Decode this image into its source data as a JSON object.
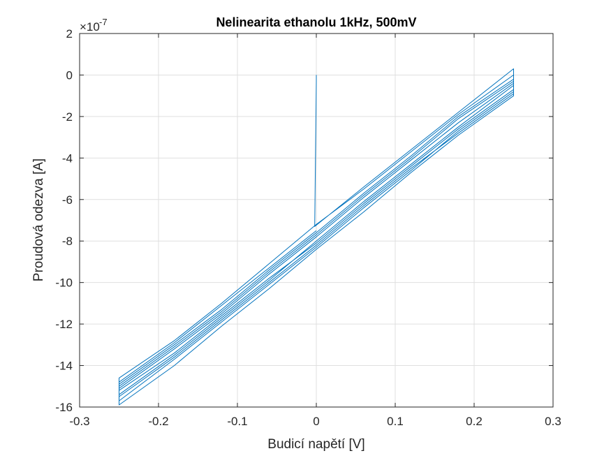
{
  "chart_data": {
    "type": "line",
    "title": "Nelinearita ethanolu 1kHz, 500mV",
    "xlabel": "Budicí napětí [V]",
    "ylabel": "Proudová odezva [A]",
    "y_exponent_prefix": "×10",
    "y_exponent_power": "-7",
    "xlim": [
      -0.3,
      0.3
    ],
    "ylim": [
      -16,
      2
    ],
    "x_ticks": [
      -0.3,
      -0.2,
      -0.1,
      0,
      0.1,
      0.2,
      0.3
    ],
    "x_tick_labels": [
      "-0.3",
      "-0.2",
      "-0.1",
      "0",
      "0.1",
      "0.2",
      "0.3"
    ],
    "y_ticks": [
      -16,
      -14,
      -12,
      -10,
      -8,
      -6,
      -4,
      -2,
      0,
      2
    ],
    "y_tick_labels": [
      "-16",
      "-14",
      "-12",
      "-10",
      "-8",
      "-6",
      "-4",
      "-2",
      "0",
      "2"
    ],
    "grid": true,
    "line_color": "#0072BD",
    "series": [
      {
        "x": [
          0,
          0.0,
          -0.002,
          0.06,
          0.12,
          0.18,
          0.25,
          0.25,
          0.18,
          0.12,
          0.06,
          0.0,
          -0.06,
          -0.12,
          -0.18,
          -0.25,
          -0.25,
          -0.18,
          -0.12,
          -0.06,
          0.0,
          0.06,
          0.12,
          0.18,
          0.25,
          0.25,
          0.18,
          0.12,
          0.06,
          0.0,
          -0.06,
          -0.12,
          -0.18,
          -0.25,
          -0.25,
          -0.18,
          -0.12,
          -0.06,
          0.0,
          0.06,
          0.12,
          0.18,
          0.25,
          0.25,
          0.18,
          0.12,
          0.06,
          0.0,
          -0.06,
          -0.12,
          -0.18,
          -0.25,
          -0.25,
          -0.18,
          -0.12,
          -0.06,
          0.0,
          0.06,
          0.12,
          0.18,
          0.25,
          0.25,
          0.18,
          0.12,
          0.06,
          0.0,
          -0.06,
          -0.12,
          -0.18,
          -0.25,
          -0.25,
          -0.18,
          -0.12,
          -0.06,
          0.0,
          0.06,
          0.12,
          0.18,
          0.25,
          0.25,
          0.18,
          0.12,
          0.06,
          0.0,
          -0.06,
          -0.12,
          -0.18,
          -0.25,
          -0.25,
          -0.18,
          -0.12,
          -0.06,
          0.0
        ],
        "y": [
          0,
          -0.3,
          -7.3,
          -5.4,
          -3.6,
          -1.8,
          0.3,
          -0.5,
          -2.5,
          -4.3,
          -6.1,
          -8.0,
          -9.9,
          -11.7,
          -13.5,
          -15.4,
          -14.6,
          -12.8,
          -11.0,
          -9.1,
          -7.2,
          -5.5,
          -3.7,
          -1.9,
          0.0,
          -0.8,
          -2.7,
          -4.6,
          -6.4,
          -8.3,
          -10.1,
          -11.9,
          -13.7,
          -15.7,
          -14.9,
          -13.0,
          -11.3,
          -9.4,
          -7.6,
          -5.7,
          -3.9,
          -2.0,
          -0.2,
          -1.0,
          -2.9,
          -4.7,
          -6.6,
          -8.4,
          -10.3,
          -12.1,
          -14.0,
          -15.9,
          -15.1,
          -13.2,
          -11.5,
          -9.6,
          -7.8,
          -5.9,
          -4.1,
          -2.3,
          -0.4,
          -0.9,
          -2.8,
          -4.5,
          -6.3,
          -8.2,
          -10.0,
          -11.8,
          -13.6,
          -15.5,
          -15.0,
          -13.1,
          -11.4,
          -9.5,
          -7.7,
          -5.8,
          -4.0,
          -2.1,
          -0.3,
          -0.7,
          -2.6,
          -4.4,
          -6.2,
          -8.1,
          -9.8,
          -11.6,
          -13.4,
          -15.2,
          -14.8,
          -12.9,
          -11.1,
          -9.3,
          -7.5
        ]
      }
    ]
  }
}
